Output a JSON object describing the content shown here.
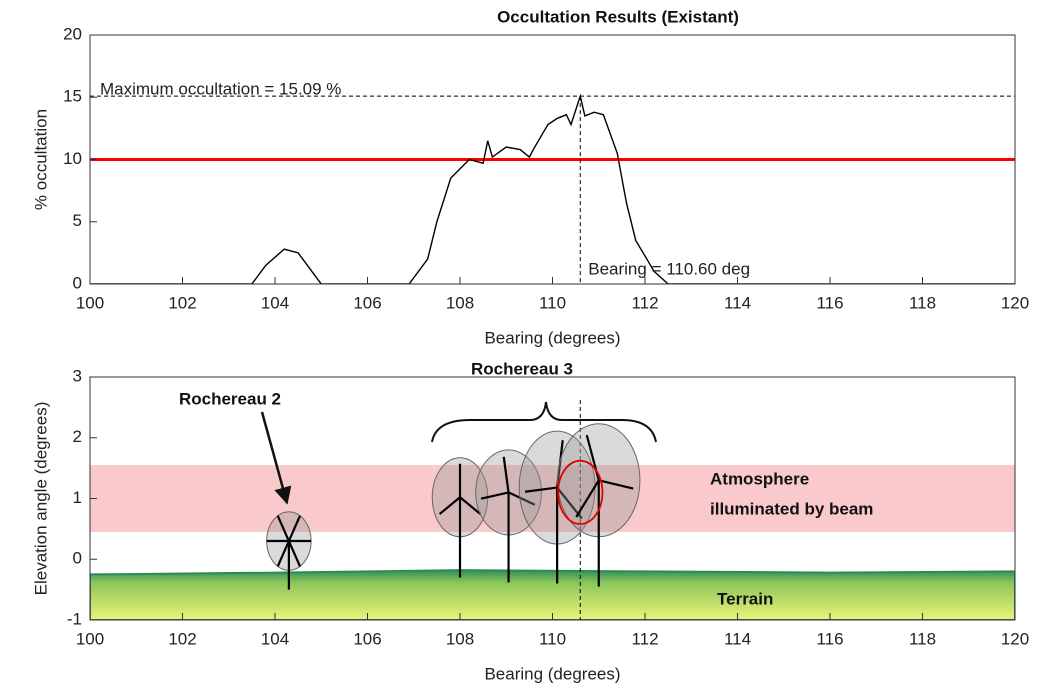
{
  "chart_data": [
    {
      "type": "line",
      "title": "Occultation Results (Existant)",
      "x_label": "Bearing (degrees)",
      "y_label": "% occultation",
      "xlim": [
        100,
        120
      ],
      "xticks": [
        100,
        102,
        104,
        106,
        108,
        110,
        112,
        114,
        116,
        118,
        120
      ],
      "ylim": [
        0,
        20
      ],
      "yticks": [
        0,
        5,
        10,
        15,
        20
      ],
      "series": [
        {
          "color": "#000000",
          "x": [
            100,
            103.5,
            103.8,
            104.2,
            104.5,
            104.8,
            105,
            106.9,
            107.3,
            107.5,
            107.8,
            108.2,
            108.5,
            108.6,
            108.7,
            109,
            109.3,
            109.5,
            109.6,
            109.9,
            110.1,
            110.3,
            110.4,
            110.6,
            110.7,
            110.9,
            111.1,
            111.4,
            111.6,
            111.8,
            112.2,
            112.5,
            120
          ],
          "values": [
            0,
            0,
            1.5,
            2.8,
            2.5,
            1,
            0,
            0,
            2,
            5,
            8.5,
            10,
            9.7,
            11.5,
            10.2,
            11,
            10.8,
            10.2,
            10.9,
            12.8,
            13.3,
            13.6,
            12.8,
            15.09,
            13.5,
            13.8,
            13.6,
            10.5,
            6.5,
            3.5,
            1,
            0,
            0
          ]
        }
      ],
      "threshold": 10,
      "threshold_color": "#ff0000",
      "max_occultation": 15.09,
      "max_bearing": 110.6,
      "max_label": "Maximum occultation = 15.09 %",
      "bearing_label": "Bearing = 110.60 deg"
    },
    {
      "type": "turbine",
      "x_label": "Bearing (degrees)",
      "y_label": "Elevation angle (degrees)",
      "xlim": [
        100,
        120
      ],
      "xticks": [
        100,
        102,
        104,
        106,
        108,
        110,
        112,
        114,
        116,
        118,
        120
      ],
      "ylim": [
        -1,
        3
      ],
      "yticks": [
        -1,
        0,
        1,
        2,
        3
      ],
      "band": [
        0.45,
        1.55
      ],
      "band_color": "#f9c9cb",
      "terrain": {
        "x": [
          100,
          104,
          108,
          112,
          116,
          120
        ],
        "values": [
          -0.25,
          -0.22,
          -0.18,
          -0.2,
          -0.22,
          -0.2
        ]
      },
      "turbines": [
        {
          "bearing": 104.3,
          "hub": 0.3,
          "rotor_width": 0.48,
          "rotor_height": 0.48,
          "base": -0.5
        },
        {
          "bearing": 108,
          "hub": 1.02,
          "rotor_width": 0.6,
          "rotor_height": 0.65,
          "base": -0.3
        },
        {
          "bearing": 109.05,
          "hub": 1.1,
          "rotor_width": 0.71,
          "rotor_height": 0.7,
          "base": -0.38
        },
        {
          "bearing": 110.1,
          "hub": 1.18,
          "rotor_width": 0.82,
          "rotor_height": 0.93,
          "base": -0.4
        },
        {
          "bearing": 111,
          "hub": 1.3,
          "rotor_width": 0.89,
          "rotor_height": 0.93,
          "base": -0.45
        }
      ],
      "beam": {
        "bearing": 110.6,
        "elevation": 1.1,
        "width": 0.48,
        "height": 0.52,
        "color": "#e00000"
      },
      "annotations": [
        "Rochereau 2",
        "Rochereau 3",
        "Atmosphere",
        "illuminated by beam",
        "Terrain"
      ]
    }
  ]
}
